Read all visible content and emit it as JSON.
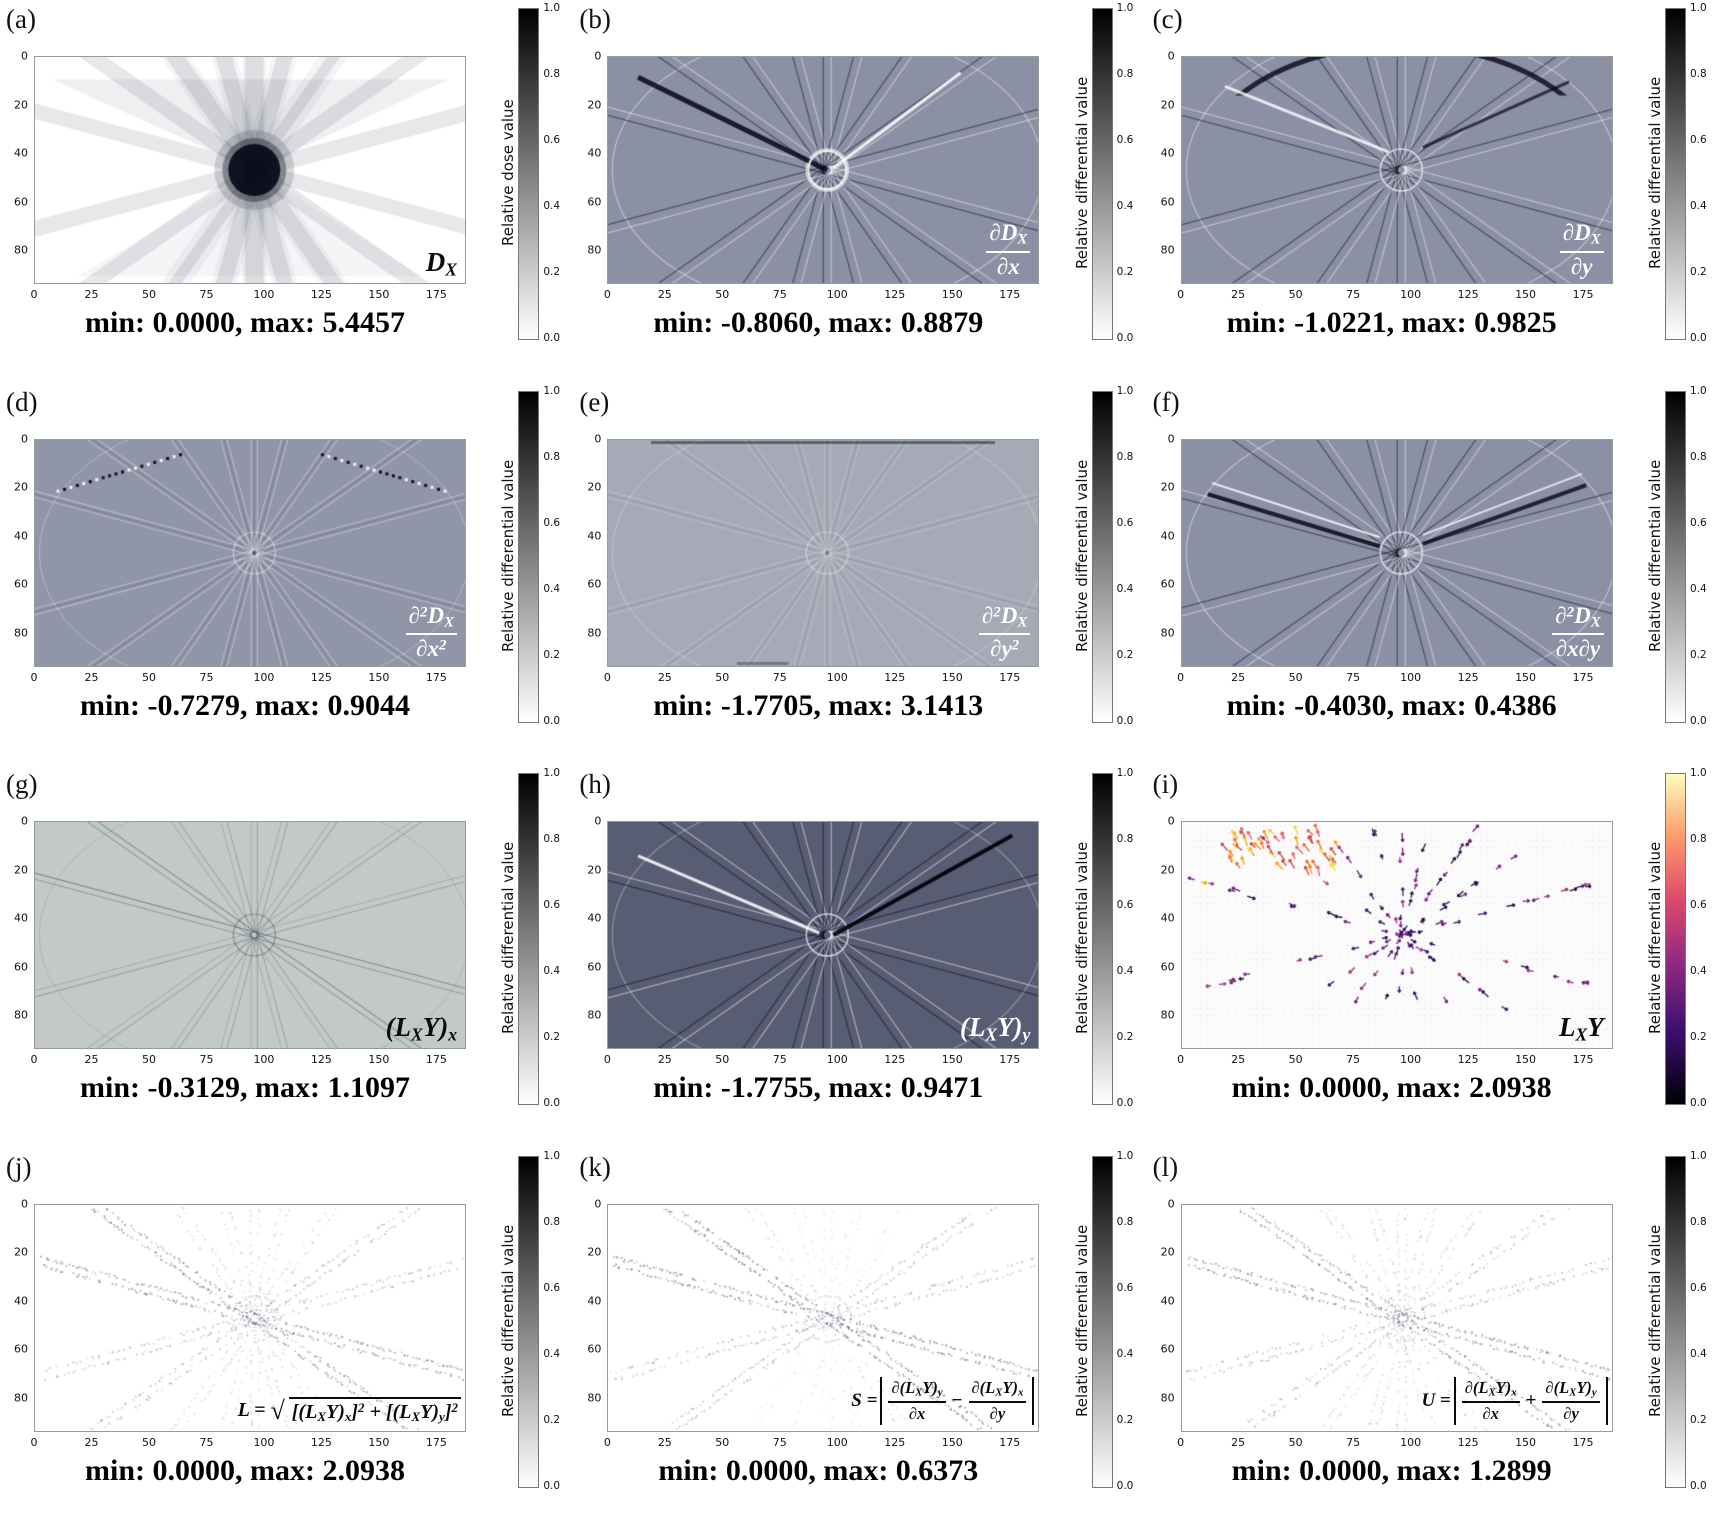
{
  "chart_data": [
    {
      "type": "heatmap",
      "letter": "(a)",
      "formula": "D_{X}",
      "colorbar_label": "Relative dose value",
      "colormap": "grayscale_reversed",
      "colorbar_ticks": [
        "1.0",
        "0.8",
        "0.6",
        "0.4",
        "0.2",
        "0.0"
      ],
      "x_ticks": [
        0,
        25,
        50,
        75,
        100,
        125,
        150,
        175
      ],
      "y_ticks": [
        0,
        20,
        40,
        60,
        80
      ],
      "x_range": [
        0,
        187
      ],
      "y_range": [
        0,
        93
      ],
      "value_min": 0.0,
      "value_max": 5.4457,
      "minmax": "min: 0.0000, max: 5.4457",
      "style": {
        "mode": "dose",
        "bg": "#ffffff",
        "formula_color": "#000000"
      }
    },
    {
      "type": "heatmap",
      "letter": "(b)",
      "num": "∂D_{X}",
      "den": "∂x",
      "colorbar_label": "Relative differential value",
      "colormap": "grayscale_reversed",
      "colorbar_ticks": [
        "1.0",
        "0.8",
        "0.6",
        "0.4",
        "0.2",
        "0.0"
      ],
      "x_ticks": [
        0,
        25,
        50,
        75,
        100,
        125,
        150,
        175
      ],
      "y_ticks": [
        0,
        20,
        40,
        60,
        80
      ],
      "x_range": [
        0,
        187
      ],
      "y_range": [
        0,
        93
      ],
      "value_min": -0.806,
      "value_max": 0.8879,
      "minmax": "min: -0.8060, max: 0.8879",
      "style": {
        "mode": "edges",
        "bg": "#8b90a4",
        "formula_color": "#ffffff"
      }
    },
    {
      "type": "heatmap",
      "letter": "(c)",
      "num": "∂D_{X}",
      "den": "∂y",
      "colorbar_label": "Relative differential value",
      "colormap": "grayscale_reversed",
      "colorbar_ticks": [
        "1.0",
        "0.8",
        "0.6",
        "0.4",
        "0.2",
        "0.0"
      ],
      "x_ticks": [
        0,
        25,
        50,
        75,
        100,
        125,
        150,
        175
      ],
      "y_ticks": [
        0,
        20,
        40,
        60,
        80
      ],
      "x_range": [
        0,
        187
      ],
      "y_range": [
        0,
        93
      ],
      "value_min": -1.0221,
      "value_max": 0.9825,
      "minmax": "min: -1.0221, max: 0.9825",
      "style": {
        "mode": "edges",
        "bg": "#8b90a4",
        "formula_color": "#ffffff"
      }
    },
    {
      "type": "heatmap",
      "letter": "(d)",
      "num": "∂^{2}D_{X}",
      "den": "∂x^{2}",
      "colorbar_label": "Relative differential value",
      "colormap": "grayscale_reversed",
      "colorbar_ticks": [
        "1.0",
        "0.8",
        "0.6",
        "0.4",
        "0.2",
        "0.0"
      ],
      "x_ticks": [
        0,
        25,
        50,
        75,
        100,
        125,
        150,
        175
      ],
      "y_ticks": [
        0,
        20,
        40,
        60,
        80
      ],
      "x_range": [
        0,
        187
      ],
      "y_range": [
        0,
        93
      ],
      "value_min": -0.7279,
      "value_max": 0.9044,
      "minmax": "min: -0.7279, max: 0.9044",
      "style": {
        "mode": "fine",
        "bg": "#9095a7",
        "formula_color": "#ffffff"
      }
    },
    {
      "type": "heatmap",
      "letter": "(e)",
      "num": "∂^{2}D_{X}",
      "den": "∂y^{2}",
      "colorbar_label": "Relative differential value",
      "colormap": "grayscale_reversed",
      "colorbar_ticks": [
        "1.0",
        "0.8",
        "0.6",
        "0.4",
        "0.2",
        "0.0"
      ],
      "x_ticks": [
        0,
        25,
        50,
        75,
        100,
        125,
        150,
        175
      ],
      "y_ticks": [
        0,
        20,
        40,
        60,
        80
      ],
      "x_range": [
        0,
        187
      ],
      "y_range": [
        0,
        93
      ],
      "value_min": -1.7705,
      "value_max": 3.1413,
      "minmax": "min: -1.7705, max: 3.1413",
      "style": {
        "mode": "fine",
        "bg": "#a6aab6",
        "formula_color": "#ffffff"
      }
    },
    {
      "type": "heatmap",
      "letter": "(f)",
      "num": "∂^{2}D_{X}",
      "den": "∂x∂y",
      "colorbar_label": "Relative differential value",
      "colormap": "grayscale_reversed",
      "colorbar_ticks": [
        "1.0",
        "0.8",
        "0.6",
        "0.4",
        "0.2",
        "0.0"
      ],
      "x_ticks": [
        0,
        25,
        50,
        75,
        100,
        125,
        150,
        175
      ],
      "y_ticks": [
        0,
        20,
        40,
        60,
        80
      ],
      "x_range": [
        0,
        187
      ],
      "y_range": [
        0,
        93
      ],
      "value_min": -0.403,
      "value_max": 0.4386,
      "minmax": "min: -0.4030, max: 0.4386",
      "style": {
        "mode": "edges",
        "bg": "#8b90a4",
        "formula_color": "#ffffff"
      }
    },
    {
      "type": "heatmap",
      "letter": "(g)",
      "formula": "(L_{X}Y)_{x}",
      "colorbar_label": "Relative differential value",
      "colormap": "grayscale_reversed",
      "colorbar_ticks": [
        "1.0",
        "0.8",
        "0.6",
        "0.4",
        "0.2",
        "0.0"
      ],
      "x_ticks": [
        0,
        25,
        50,
        75,
        100,
        125,
        150,
        175
      ],
      "y_ticks": [
        0,
        20,
        40,
        60,
        80
      ],
      "x_range": [
        0,
        187
      ],
      "y_range": [
        0,
        93
      ],
      "value_min": -0.3129,
      "value_max": 1.1097,
      "minmax": "min: -0.3129, max: 1.1097",
      "style": {
        "mode": "faintlines",
        "bg": "#c3cac6",
        "formula_color": "#000000"
      }
    },
    {
      "type": "heatmap",
      "letter": "(h)",
      "formula": "(L_{X}Y)_{y}",
      "colorbar_label": "Relative differential value",
      "colormap": "grayscale_reversed",
      "colorbar_ticks": [
        "1.0",
        "0.8",
        "0.6",
        "0.4",
        "0.2",
        "0.0"
      ],
      "x_ticks": [
        0,
        25,
        50,
        75,
        100,
        125,
        150,
        175
      ],
      "y_ticks": [
        0,
        20,
        40,
        60,
        80
      ],
      "x_range": [
        0,
        187
      ],
      "y_range": [
        0,
        93
      ],
      "value_min": -1.7755,
      "value_max": 0.9471,
      "minmax": "min: -1.7755, max: 0.9471",
      "style": {
        "mode": "edges",
        "bg": "#585d73",
        "formula_color": "#ffffff"
      }
    },
    {
      "type": "quiver",
      "letter": "(i)",
      "formula": "L_{X}Y",
      "colorbar_label": "Relative differential value",
      "colormap": "magma_reversed",
      "colorbar_ticks": [
        "1.0",
        "0.8",
        "0.6",
        "0.4",
        "0.2",
        "0.0"
      ],
      "x_ticks": [
        0,
        25,
        50,
        75,
        100,
        125,
        150,
        175
      ],
      "y_ticks": [
        0,
        20,
        40,
        60,
        80
      ],
      "x_range": [
        0,
        187
      ],
      "y_range": [
        0,
        93
      ],
      "value_min": 0.0,
      "value_max": 2.0938,
      "minmax": "min: 0.0000, max: 2.0938",
      "style": {
        "mode": "quiver",
        "bg": "#fbfbfb",
        "formula_color": "#000000"
      }
    },
    {
      "type": "heatmap",
      "letter": "(j)",
      "lead": "L = ",
      "sqrt_body": "[(L_{X}Y)_{x}]^{2} + [(L_{X}Y)_{y}]^{2}",
      "colorbar_label": "Relative differential value",
      "colormap": "grayscale_reversed",
      "colorbar_ticks": [
        "1.0",
        "0.8",
        "0.6",
        "0.4",
        "0.2",
        "0.0"
      ],
      "x_ticks": [
        0,
        25,
        50,
        75,
        100,
        125,
        150,
        175
      ],
      "y_ticks": [
        0,
        20,
        40,
        60,
        80
      ],
      "x_range": [
        0,
        187
      ],
      "y_range": [
        0,
        93
      ],
      "value_min": 0.0,
      "value_max": 2.0938,
      "minmax": "min: 0.0000, max: 2.0938",
      "style": {
        "mode": "stipple",
        "bg": "#ffffff",
        "formula_color": "#000000"
      }
    },
    {
      "type": "heatmap",
      "letter": "(k)",
      "lead": "S = ",
      "num1": "∂(L_{X}Y)_{y}",
      "den1": "∂x",
      "op": "−",
      "num2": "∂(L_{X}Y)_{x}",
      "den2": "∂y",
      "colorbar_label": "Relative differential value",
      "colormap": "grayscale_reversed",
      "colorbar_ticks": [
        "1.0",
        "0.8",
        "0.6",
        "0.4",
        "0.2",
        "0.0"
      ],
      "x_ticks": [
        0,
        25,
        50,
        75,
        100,
        125,
        150,
        175
      ],
      "y_ticks": [
        0,
        20,
        40,
        60,
        80
      ],
      "x_range": [
        0,
        187
      ],
      "y_range": [
        0,
        93
      ],
      "value_min": 0.0,
      "value_max": 0.6373,
      "minmax": "min: 0.0000, max: 0.6373",
      "style": {
        "mode": "stipple",
        "bg": "#ffffff",
        "formula_color": "#000000"
      }
    },
    {
      "type": "heatmap",
      "letter": "(l)",
      "lead": "U = ",
      "num1": "∂(L_{X}Y)_{x}",
      "den1": "∂x",
      "op": "+",
      "num2": "∂(L_{X}Y)_{y}",
      "den2": "∂y",
      "colorbar_label": "Relative differential value",
      "colormap": "grayscale_reversed",
      "colorbar_ticks": [
        "1.0",
        "0.8",
        "0.6",
        "0.4",
        "0.2",
        "0.0"
      ],
      "x_ticks": [
        0,
        25,
        50,
        75,
        100,
        125,
        150,
        175
      ],
      "y_ticks": [
        0,
        20,
        40,
        60,
        80
      ],
      "x_range": [
        0,
        187
      ],
      "y_range": [
        0,
        93
      ],
      "value_min": 0.0,
      "value_max": 1.2899,
      "minmax": "min: 0.0000, max: 1.2899",
      "style": {
        "mode": "stipple",
        "bg": "#ffffff",
        "formula_color": "#000000"
      }
    }
  ]
}
